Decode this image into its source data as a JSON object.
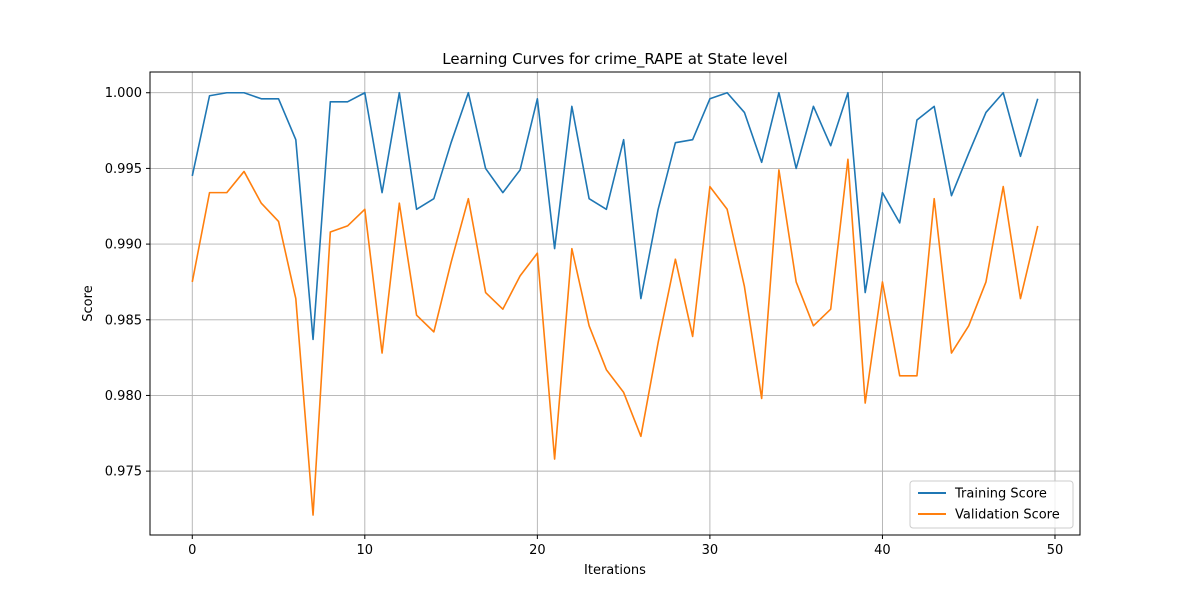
{
  "chart_data": {
    "type": "line",
    "title": "Learning Curves for crime_RAPE at State level",
    "xlabel": "Iterations",
    "ylabel": "Score",
    "xlim": [
      -2.45,
      51.45
    ],
    "ylim": [
      0.97078,
      1.00137
    ],
    "xticks": [
      0,
      10,
      20,
      30,
      40,
      50
    ],
    "yticks": [
      0.975,
      0.98,
      0.985,
      0.99,
      0.995,
      1.0
    ],
    "ytick_labels": [
      "0.975",
      "0.980",
      "0.985",
      "0.990",
      "0.995",
      "1.000"
    ],
    "grid": true,
    "legend_position": "bottom-right",
    "x": [
      0,
      1,
      2,
      3,
      4,
      5,
      6,
      7,
      8,
      9,
      10,
      11,
      12,
      13,
      14,
      15,
      16,
      17,
      18,
      19,
      20,
      21,
      22,
      23,
      24,
      25,
      26,
      27,
      28,
      29,
      30,
      31,
      32,
      33,
      34,
      35,
      36,
      37,
      38,
      39,
      40,
      41,
      42,
      43,
      44,
      45,
      46,
      47,
      48,
      49
    ],
    "series": [
      {
        "name": "Training Score",
        "color": "#1f77b4",
        "values": [
          0.9945,
          0.9998,
          1.0,
          1.0,
          0.9996,
          0.9996,
          0.9969,
          0.9837,
          0.9994,
          0.9994,
          1.0,
          0.9934,
          1.0,
          0.9923,
          0.993,
          0.9967,
          1.0,
          0.995,
          0.9934,
          0.9949,
          0.9996,
          0.9897,
          0.9991,
          0.993,
          0.9923,
          0.9969,
          0.9864,
          0.9923,
          0.9967,
          0.9969,
          0.9996,
          1.0,
          0.9987,
          0.9954,
          1.0,
          0.995,
          0.9991,
          0.9965,
          1.0,
          0.9868,
          0.9934,
          0.9914,
          0.9982,
          0.9991,
          0.9932,
          0.996,
          0.9987,
          1.0,
          0.9958,
          0.9996
        ]
      },
      {
        "name": "Validation Score",
        "color": "#ff7f0e",
        "values": [
          0.9875,
          0.9934,
          0.9934,
          0.9948,
          0.9927,
          0.9915,
          0.9864,
          0.9721,
          0.9908,
          0.9912,
          0.9923,
          0.9828,
          0.9927,
          0.9853,
          0.9842,
          0.9888,
          0.993,
          0.9868,
          0.9857,
          0.9879,
          0.9894,
          0.9758,
          0.9897,
          0.9846,
          0.9817,
          0.9802,
          0.9773,
          0.9835,
          0.989,
          0.9839,
          0.9938,
          0.9923,
          0.9872,
          0.9798,
          0.9949,
          0.9875,
          0.9846,
          0.9857,
          0.9956,
          0.9795,
          0.9875,
          0.9813,
          0.9813,
          0.993,
          0.9828,
          0.9846,
          0.9875,
          0.9938,
          0.9864,
          0.9912
        ]
      }
    ]
  }
}
